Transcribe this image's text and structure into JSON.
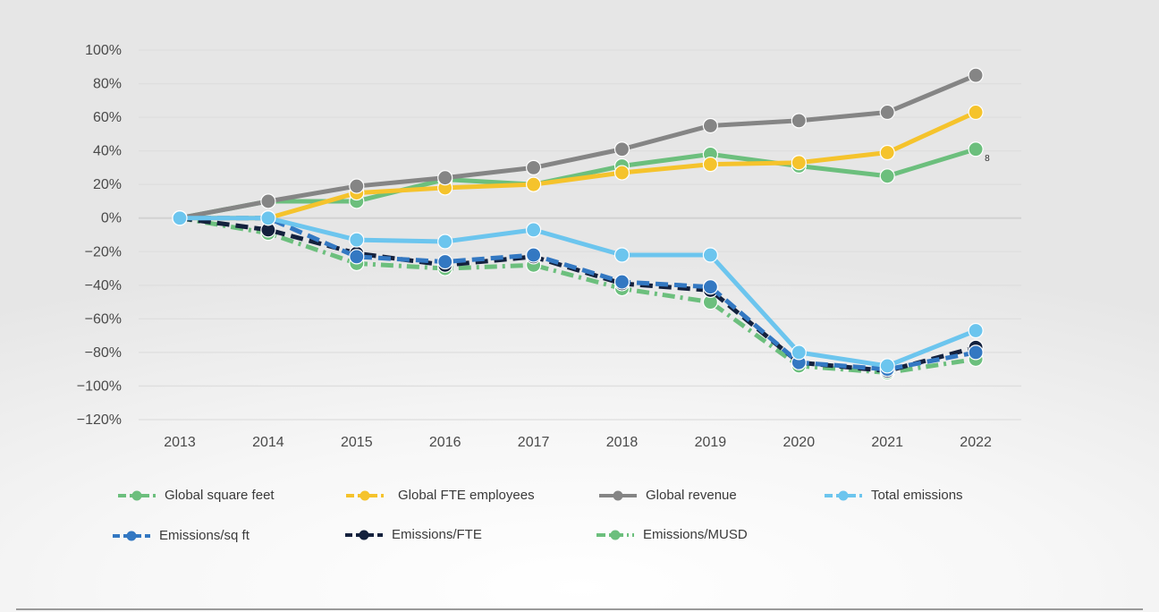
{
  "chart_data": {
    "type": "line",
    "title": "",
    "xlabel": "",
    "ylabel": "",
    "x": [
      "2013",
      "2014",
      "2015",
      "2016",
      "2017",
      "2018",
      "2019",
      "2020",
      "2021",
      "2022"
    ],
    "ylim": [
      -120,
      100
    ],
    "yticks": [
      100,
      80,
      60,
      40,
      20,
      0,
      -20,
      -40,
      -60,
      -80,
      -100,
      -120
    ],
    "ytick_labels": [
      "100%",
      "80%",
      "60%",
      "40%",
      "20%",
      "0%",
      "−20%",
      "−40%",
      "−60%",
      "−80%",
      "−100%",
      "−120%"
    ],
    "grid": true,
    "legend_position": "bottom",
    "series": [
      {
        "name": "Global square feet",
        "color": "#6cbf7d",
        "dash": "solid",
        "values": [
          0,
          10,
          10,
          23,
          20,
          31,
          38,
          31,
          25,
          41
        ]
      },
      {
        "name": "Global FTE employees",
        "color": "#f5c32c",
        "dash": "solid",
        "values": [
          0,
          0,
          15,
          18,
          20,
          27,
          32,
          33,
          39,
          63
        ]
      },
      {
        "name": "Global revenue",
        "color": "#858585",
        "dash": "solid",
        "values": [
          0,
          10,
          19,
          24,
          30,
          41,
          55,
          58,
          63,
          85
        ]
      },
      {
        "name": "Total emissions",
        "color": "#6cc5ee",
        "dash": "solid",
        "values": [
          0,
          0,
          -13,
          -14,
          -7,
          -22,
          -22,
          -80,
          -88,
          -67
        ]
      },
      {
        "name": "Emissions/sq ft",
        "color": "#3378c2",
        "dash": "dashed",
        "values": [
          0,
          0,
          -23,
          -26,
          -22,
          -38,
          -41,
          -86,
          -90,
          -80
        ]
      },
      {
        "name": "Emissions/FTE",
        "color": "#14213d",
        "dash": "dashed",
        "values": [
          0,
          -7,
          -21,
          -28,
          -23,
          -39,
          -43,
          -86,
          -91,
          -77
        ]
      },
      {
        "name": "Emissions/MUSD",
        "color": "#6cbf7d",
        "dash": "dashdot",
        "values": [
          0,
          -9,
          -27,
          -30,
          -28,
          -42,
          -50,
          -88,
          -92,
          -84
        ]
      }
    ],
    "annotations": [
      {
        "text": "8",
        "series": "Global square feet",
        "x": "2022"
      }
    ]
  }
}
